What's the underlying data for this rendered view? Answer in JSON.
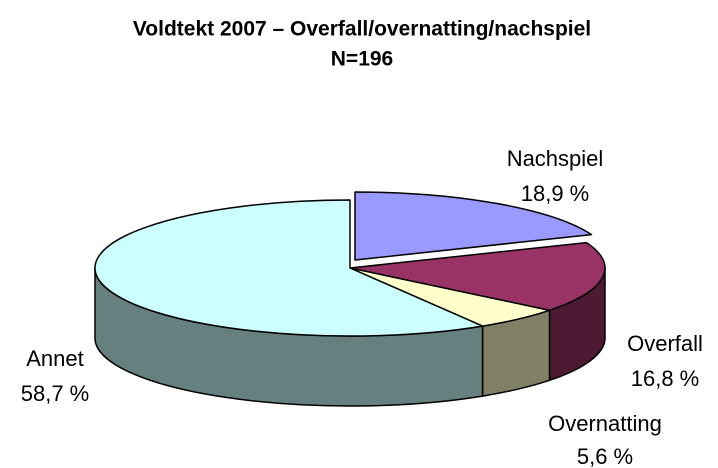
{
  "chart_data": {
    "type": "pie",
    "title": "Voldtekt 2007 – Overfall/overnatting/nachspiel",
    "subtitle": "N=196",
    "categories": [
      "Nachspiel",
      "Overfall",
      "Overnatting",
      "Annet"
    ],
    "values": [
      18.9,
      16.8,
      5.6,
      58.7
    ],
    "value_labels": [
      "18,9 %",
      "16,8 %",
      "5,6 %",
      "58,7 %"
    ],
    "colors": [
      "#9999ff",
      "#993366",
      "#ffffcc",
      "#ccffff"
    ]
  }
}
